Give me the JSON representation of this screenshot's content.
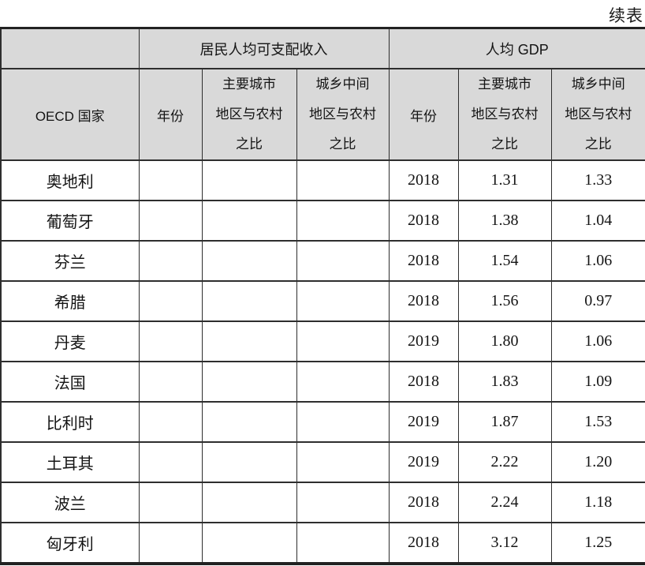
{
  "page": {
    "continued_label": "续表"
  },
  "table": {
    "group_headers": {
      "empty": "",
      "income": "居民人均可支配收入",
      "gdp": "人均 GDP"
    },
    "column_headers": {
      "country": "OECD 国家",
      "income_year": "年份",
      "income_major_lines": [
        "主要城市",
        "地区与农村",
        "之比"
      ],
      "income_mid_lines": [
        "城乡中间",
        "地区与农村",
        "之比"
      ],
      "gdp_year": "年份",
      "gdp_major_lines": [
        "主要城市",
        "地区与农村",
        "之比"
      ],
      "gdp_mid_lines": [
        "城乡中间",
        "地区与农村",
        "之比"
      ]
    },
    "rows": [
      {
        "country": "奥地利",
        "income_year": "",
        "income_major": "",
        "income_mid": "",
        "gdp_year": "2018",
        "gdp_major": "1.31",
        "gdp_mid": "1.33"
      },
      {
        "country": "葡萄牙",
        "income_year": "",
        "income_major": "",
        "income_mid": "",
        "gdp_year": "2018",
        "gdp_major": "1.38",
        "gdp_mid": "1.04"
      },
      {
        "country": "芬兰",
        "income_year": "",
        "income_major": "",
        "income_mid": "",
        "gdp_year": "2018",
        "gdp_major": "1.54",
        "gdp_mid": "1.06"
      },
      {
        "country": "希腊",
        "income_year": "",
        "income_major": "",
        "income_mid": "",
        "gdp_year": "2018",
        "gdp_major": "1.56",
        "gdp_mid": "0.97"
      },
      {
        "country": "丹麦",
        "income_year": "",
        "income_major": "",
        "income_mid": "",
        "gdp_year": "2019",
        "gdp_major": "1.80",
        "gdp_mid": "1.06"
      },
      {
        "country": "法国",
        "income_year": "",
        "income_major": "",
        "income_mid": "",
        "gdp_year": "2018",
        "gdp_major": "1.83",
        "gdp_mid": "1.09"
      },
      {
        "country": "比利时",
        "income_year": "",
        "income_major": "",
        "income_mid": "",
        "gdp_year": "2019",
        "gdp_major": "1.87",
        "gdp_mid": "1.53"
      },
      {
        "country": "土耳其",
        "income_year": "",
        "income_major": "",
        "income_mid": "",
        "gdp_year": "2019",
        "gdp_major": "2.22",
        "gdp_mid": "1.20"
      },
      {
        "country": "波兰",
        "income_year": "",
        "income_major": "",
        "income_mid": "",
        "gdp_year": "2018",
        "gdp_major": "2.24",
        "gdp_mid": "1.18"
      },
      {
        "country": "匈牙利",
        "income_year": "",
        "income_major": "",
        "income_mid": "",
        "gdp_year": "2018",
        "gdp_major": "3.12",
        "gdp_mid": "1.25"
      }
    ]
  }
}
